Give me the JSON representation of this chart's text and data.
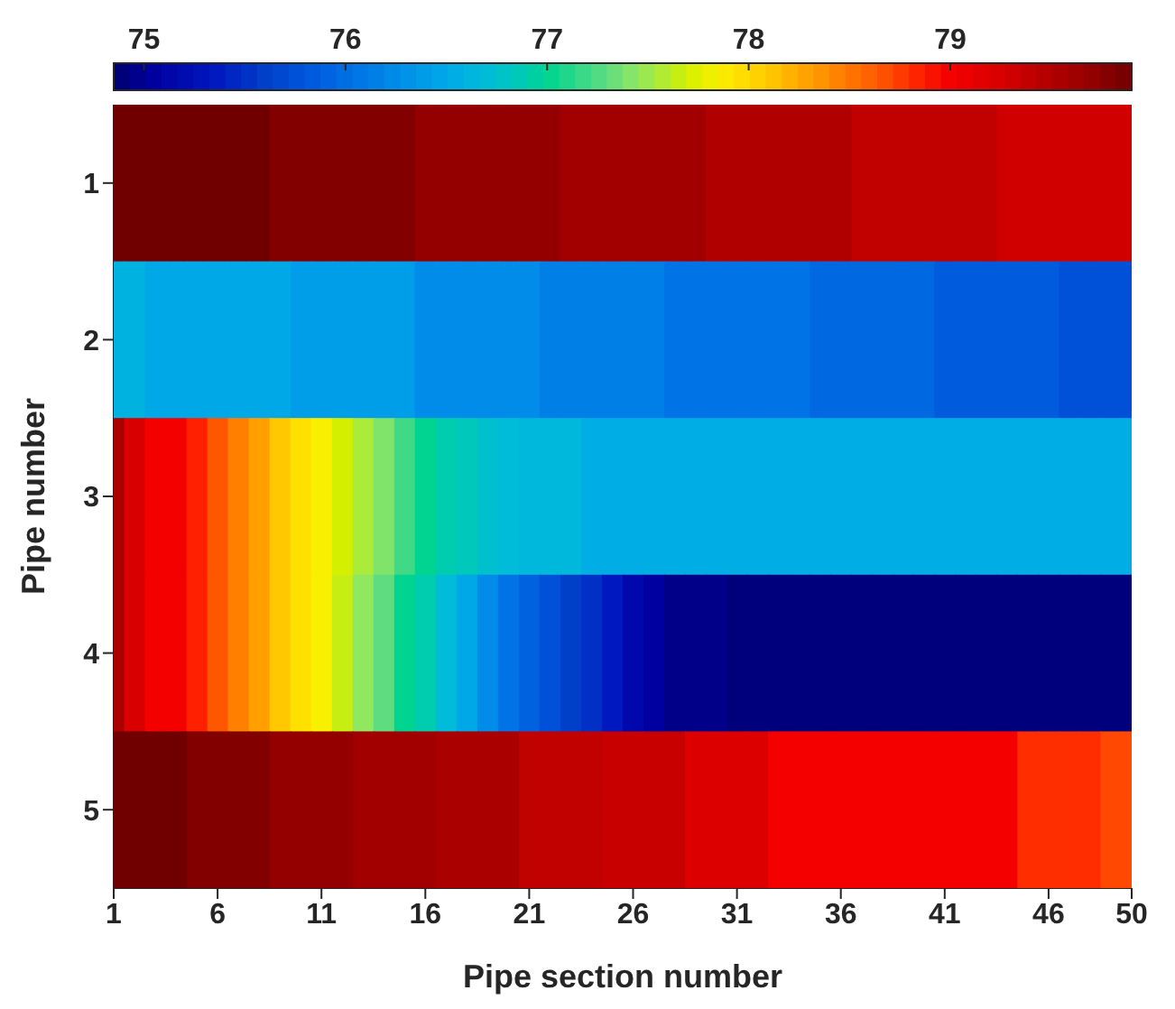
{
  "chart_data": {
    "type": "heatmap",
    "xlabel": "Pipe section number",
    "ylabel": "Pipe number",
    "x": [
      1,
      2,
      3,
      4,
      5,
      6,
      7,
      8,
      9,
      10,
      11,
      12,
      13,
      14,
      15,
      16,
      17,
      18,
      19,
      20,
      21,
      22,
      23,
      24,
      25,
      26,
      27,
      28,
      29,
      30,
      31,
      32,
      33,
      34,
      35,
      36,
      37,
      38,
      39,
      40,
      41,
      42,
      43,
      44,
      45,
      46,
      47,
      48,
      49,
      50
    ],
    "xlim": [
      1,
      50
    ],
    "xticks": [
      1,
      6,
      11,
      16,
      21,
      26,
      31,
      36,
      41,
      46,
      50
    ],
    "y_categories": [
      "1",
      "2",
      "3",
      "4",
      "5"
    ],
    "cells": [
      [
        79.9,
        79.9,
        79.9,
        79.9,
        79.9,
        79.9,
        79.9,
        79.9,
        79.8,
        79.8,
        79.8,
        79.8,
        79.8,
        79.8,
        79.8,
        79.7,
        79.7,
        79.7,
        79.7,
        79.7,
        79.7,
        79.7,
        79.6,
        79.6,
        79.6,
        79.6,
        79.6,
        79.6,
        79.6,
        79.5,
        79.5,
        79.5,
        79.5,
        79.5,
        79.5,
        79.5,
        79.4,
        79.4,
        79.4,
        79.4,
        79.4,
        79.4,
        79.4,
        79.3,
        79.3,
        79.3,
        79.3,
        79.3,
        79.3,
        79.3
      ],
      [
        76.6,
        76.6,
        76.5,
        76.5,
        76.5,
        76.5,
        76.5,
        76.5,
        76.5,
        76.4,
        76.4,
        76.4,
        76.4,
        76.4,
        76.4,
        76.25,
        76.25,
        76.25,
        76.25,
        76.25,
        76.25,
        76.15,
        76.15,
        76.15,
        76.15,
        76.15,
        76.15,
        76.05,
        76.05,
        76.05,
        76.05,
        76.05,
        76.05,
        76.05,
        75.95,
        75.95,
        75.95,
        75.95,
        75.95,
        75.95,
        75.85,
        75.85,
        75.85,
        75.85,
        75.85,
        75.85,
        75.75,
        75.75,
        75.75,
        75.75
      ],
      [
        79.55,
        79.25,
        79.0,
        79.0,
        78.85,
        78.65,
        78.45,
        78.3,
        78.1,
        77.95,
        77.85,
        77.7,
        77.55,
        77.4,
        77.2,
        77.0,
        76.9,
        76.85,
        76.75,
        76.7,
        76.65,
        76.65,
        76.65,
        76.55,
        76.55,
        76.55,
        76.55,
        76.55,
        76.55,
        76.55,
        76.55,
        76.55,
        76.55,
        76.55,
        76.55,
        76.55,
        76.55,
        76.55,
        76.55,
        76.55,
        76.55,
        76.55,
        76.55,
        76.55,
        76.55,
        76.55,
        76.55,
        76.55,
        76.55,
        76.55
      ],
      [
        79.55,
        79.25,
        79.0,
        79.0,
        78.85,
        78.65,
        78.45,
        78.3,
        78.1,
        77.95,
        77.85,
        77.65,
        77.45,
        77.3,
        77.0,
        76.9,
        76.7,
        76.5,
        76.25,
        76.05,
        75.9,
        75.75,
        75.6,
        75.5,
        75.35,
        75.15,
        75.05,
        74.95,
        74.95,
        74.95,
        74.9,
        74.9,
        74.9,
        74.9,
        74.9,
        74.9,
        74.9,
        74.9,
        74.9,
        74.9,
        74.9,
        74.9,
        74.9,
        74.9,
        74.9,
        74.9,
        74.9,
        74.9,
        74.9,
        74.9
      ],
      [
        79.9,
        79.9,
        79.9,
        79.9,
        79.8,
        79.8,
        79.8,
        79.8,
        79.7,
        79.7,
        79.7,
        79.7,
        79.6,
        79.6,
        79.6,
        79.6,
        79.55,
        79.55,
        79.55,
        79.55,
        79.4,
        79.4,
        79.4,
        79.4,
        79.35,
        79.35,
        79.35,
        79.35,
        79.2,
        79.2,
        79.2,
        79.2,
        79.0,
        79.0,
        79.0,
        79.0,
        79.0,
        79.0,
        79.0,
        79.0,
        79.0,
        79.0,
        79.0,
        79.0,
        78.8,
        78.8,
        78.8,
        78.8,
        78.7,
        78.7
      ]
    ],
    "clim": [
      74.85,
      79.9
    ],
    "cticks": [
      75,
      76,
      77,
      78,
      79
    ]
  }
}
